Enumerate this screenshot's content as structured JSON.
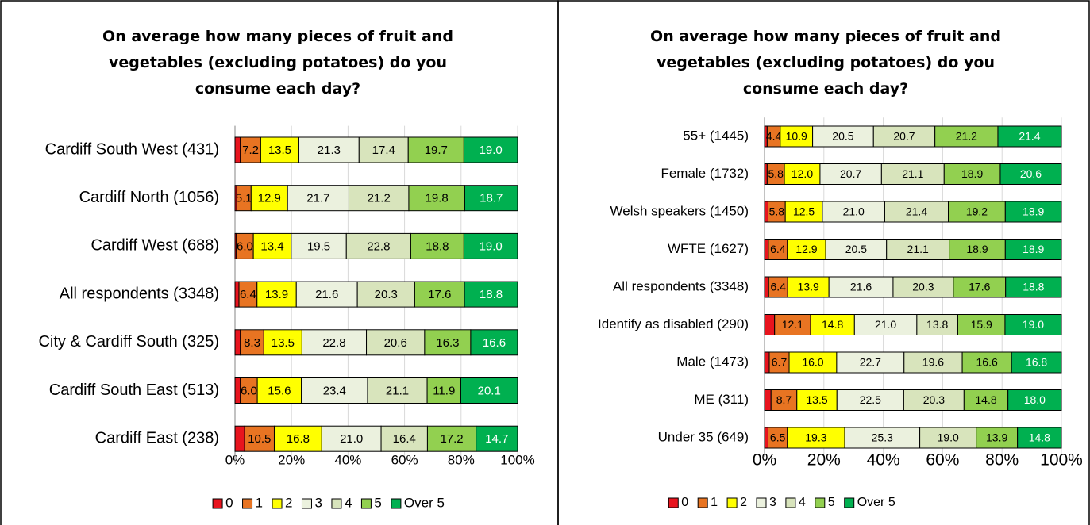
{
  "chart_data": [
    {
      "type": "stacked-bar",
      "title": "On average how many pieces of fruit and vegetables (excluding potatoes) do you consume each day?",
      "categories": [
        "Cardiff South West (431)",
        "Cardiff North (1056)",
        "Cardiff West (688)",
        "All respondents (3348)",
        "City & Cardiff South (325)",
        "Cardiff South East (513)",
        "Cardiff East (238)"
      ],
      "series": [
        {
          "name": "0",
          "color": "#e8141e",
          "values": [
            1.9,
            0.6,
            0.5,
            1.4,
            1.9,
            1.9,
            3.4
          ]
        },
        {
          "name": "1",
          "color": "#e87422",
          "values": [
            7.2,
            5.1,
            6.0,
            6.4,
            8.3,
            6.0,
            10.5
          ],
          "value_labels": [
            "7.2",
            "5.1",
            "6.0",
            "6.4",
            "8.3",
            "6.0",
            "10.5"
          ]
        },
        {
          "name": "2",
          "color": "#ffff00",
          "values": [
            13.5,
            12.9,
            13.4,
            13.9,
            13.5,
            15.6,
            16.8
          ],
          "value_labels": [
            "13.5",
            "12.9",
            "13.4",
            "13.9",
            "13.5",
            "15.6",
            "16.8"
          ]
        },
        {
          "name": "3",
          "color": "#ebf1de",
          "values": [
            21.3,
            21.7,
            19.5,
            21.6,
            22.8,
            23.4,
            21.0
          ],
          "value_labels": [
            "21.3",
            "21.7",
            "19.5",
            "21.6",
            "22.8",
            "23.4",
            "21.0"
          ]
        },
        {
          "name": "4",
          "color": "#d8e4bc",
          "values": [
            17.4,
            21.2,
            22.8,
            20.3,
            20.6,
            21.1,
            16.4
          ],
          "value_labels": [
            "17.4",
            "21.2",
            "22.8",
            "20.3",
            "20.6",
            "21.1",
            "16.4"
          ]
        },
        {
          "name": "5",
          "color": "#92d050",
          "values": [
            19.7,
            19.8,
            18.8,
            17.6,
            16.3,
            11.9,
            17.2
          ],
          "value_labels": [
            "19.7",
            "19.8",
            "18.8",
            "17.6",
            "16.3",
            "11.9",
            "17.2"
          ]
        },
        {
          "name": "Over 5",
          "color": "#00b050",
          "values": [
            19.0,
            18.7,
            19.0,
            18.8,
            16.6,
            20.1,
            14.7
          ],
          "value_labels": [
            "19.0",
            "18.7",
            "19.0",
            "18.8",
            "16.6",
            "20.1",
            "14.7"
          ]
        }
      ],
      "xlim": [
        0,
        100
      ],
      "xticks": [
        {
          "value": 0,
          "label": "0%"
        },
        {
          "value": 20,
          "label": "20%"
        },
        {
          "value": 40,
          "label": "40%"
        },
        {
          "value": 60,
          "label": "60%"
        },
        {
          "value": 80,
          "label": "80%"
        },
        {
          "value": 100,
          "label": "100%"
        }
      ],
      "legend": "bottom"
    },
    {
      "type": "stacked-bar",
      "title": "On average how many pieces of fruit and vegetables (excluding potatoes) do you consume each day?",
      "categories": [
        "55+ (1445)",
        "Female (1732)",
        "Welsh speakers (1450)",
        "WFTE (1627)",
        "All respondents (3348)",
        "Identify as disabled (290)",
        "Male (1473)",
        "ME (311)",
        "Under 35 (649)"
      ],
      "series": [
        {
          "name": "0",
          "color": "#e8141e",
          "values": [
            0.9,
            0.9,
            1.2,
            1.3,
            1.4,
            3.4,
            1.6,
            2.2,
            1.2
          ]
        },
        {
          "name": "1",
          "color": "#e87422",
          "values": [
            4.4,
            5.8,
            5.8,
            6.4,
            6.4,
            12.1,
            6.7,
            8.7,
            6.5
          ],
          "value_labels": [
            "4.4",
            "5.8",
            "5.8",
            "6.4",
            "6.4",
            "12.1",
            "6.7",
            "8.7",
            "6.5"
          ]
        },
        {
          "name": "2",
          "color": "#ffff00",
          "values": [
            10.9,
            12.0,
            12.5,
            12.9,
            13.9,
            14.8,
            16.0,
            13.5,
            19.3
          ],
          "value_labels": [
            "10.9",
            "12.0",
            "12.5",
            "12.9",
            "13.9",
            "14.8",
            "16.0",
            "13.5",
            "19.3"
          ]
        },
        {
          "name": "3",
          "color": "#ebf1de",
          "values": [
            20.5,
            20.7,
            21.0,
            20.5,
            21.6,
            21.0,
            22.7,
            22.5,
            25.3
          ],
          "value_labels": [
            "20.5",
            "20.7",
            "21.0",
            "20.5",
            "21.6",
            "21.0",
            "22.7",
            "22.5",
            "25.3"
          ]
        },
        {
          "name": "4",
          "color": "#d8e4bc",
          "values": [
            20.7,
            21.1,
            21.4,
            21.1,
            20.3,
            13.8,
            19.6,
            20.3,
            19.0
          ],
          "value_labels": [
            "20.7",
            "21.1",
            "21.4",
            "21.1",
            "20.3",
            "13.8",
            "19.6",
            "20.3",
            "19.0"
          ]
        },
        {
          "name": "5",
          "color": "#92d050",
          "values": [
            21.2,
            18.9,
            19.2,
            18.9,
            17.6,
            15.9,
            16.6,
            14.8,
            13.9
          ],
          "value_labels": [
            "21.2",
            "18.9",
            "19.2",
            "18.9",
            "17.6",
            "15.9",
            "16.6",
            "14.8",
            "13.9"
          ]
        },
        {
          "name": "Over 5",
          "color": "#00b050",
          "values": [
            21.4,
            20.6,
            18.9,
            18.9,
            18.8,
            19.0,
            16.8,
            18.0,
            14.8
          ],
          "value_labels": [
            "21.4",
            "20.6",
            "18.9",
            "18.9",
            "18.8",
            "19.0",
            "16.8",
            "18.0",
            "14.8"
          ]
        }
      ],
      "xlim": [
        0,
        100
      ],
      "xticks": [
        {
          "value": 0,
          "label": "0%"
        },
        {
          "value": 20,
          "label": "20%"
        },
        {
          "value": 40,
          "label": "40%"
        },
        {
          "value": 60,
          "label": "60%"
        },
        {
          "value": 80,
          "label": "80%"
        },
        {
          "value": 100,
          "label": "100%"
        }
      ],
      "legend": "bottom"
    }
  ]
}
